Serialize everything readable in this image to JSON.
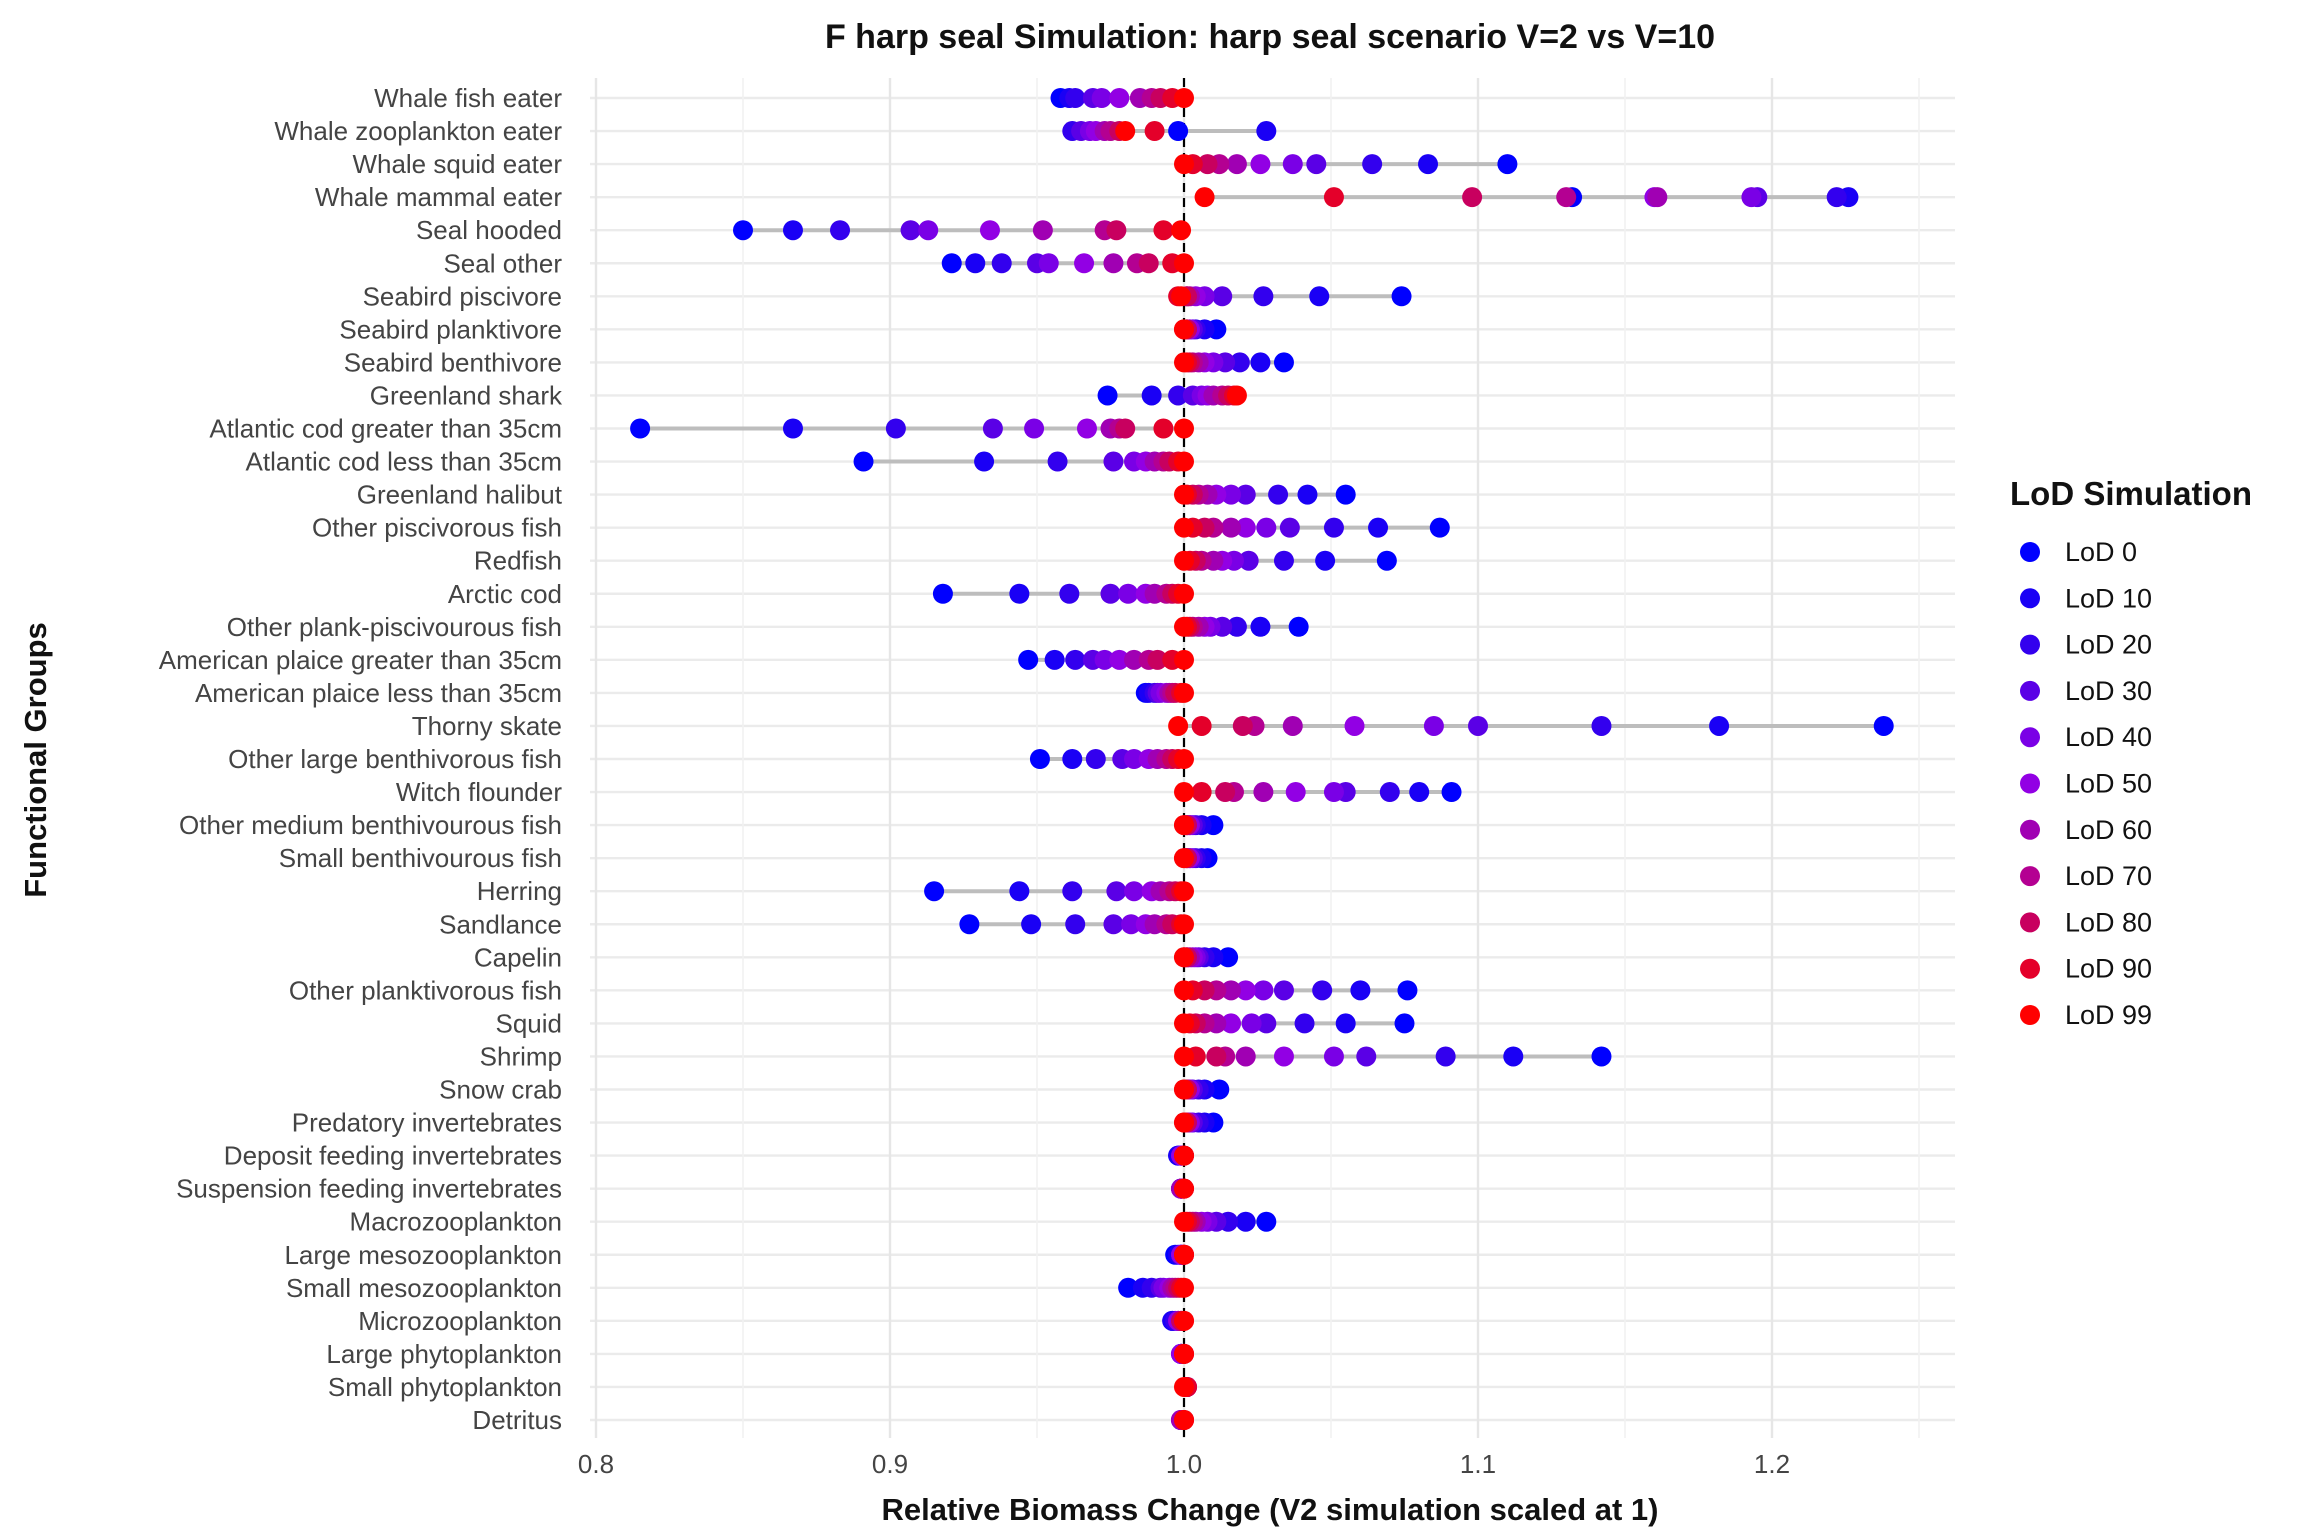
{
  "chart_data": {
    "type": "scatter",
    "title": "F harp seal Simulation: harp seal scenario V=2 vs V=10",
    "xlabel": "Relative Biomass Change (V2 simulation scaled at 1)",
    "ylabel": "Functional Groups",
    "xlim": [
      0.8,
      1.26
    ],
    "x_ticks": [
      "0.8",
      "0.9",
      "1.0",
      "1.1",
      "1.2"
    ],
    "x_tick_values": [
      0.8,
      0.9,
      1.0,
      1.1,
      1.2
    ],
    "reference_line_x": 1.0,
    "grid": true,
    "legend": {
      "title": "LoD Simulation",
      "placement": "right",
      "entries": [
        "LoD 0",
        "LoD 10",
        "LoD 20",
        "LoD 30",
        "LoD 40",
        "LoD 50",
        "LoD 60",
        "LoD 70",
        "LoD 80",
        "LoD 90",
        "LoD 99"
      ],
      "colors": [
        "#0000ff",
        "#1a00f5",
        "#3300ee",
        "#5a00e6",
        "#7a00e6",
        "#9200e4",
        "#a000b3",
        "#b40092",
        "#c8005f",
        "#e4002a",
        "#ff0000"
      ]
    },
    "categories": [
      "Whale fish eater",
      "Whale zooplankton eater",
      "Whale squid eater",
      "Whale mammal eater",
      "Seal hooded",
      "Seal other",
      "Seabird piscivore",
      "Seabird planktivore",
      "Seabird benthivore",
      "Greenland shark",
      "Atlantic cod greater than 35cm",
      "Atlantic cod less than 35cm",
      "Greenland halibut",
      "Other piscivorous fish",
      "Redfish",
      "Arctic cod",
      "Other plank-piscivourous fish",
      "American plaice greater than 35cm",
      "American plaice less than 35cm",
      "Thorny skate",
      "Other large benthivorous fish",
      "Witch flounder",
      "Other medium benthivourous fish",
      "Small benthivourous fish",
      "Herring",
      "Sandlance",
      "Capelin",
      "Other planktivorous fish",
      "Squid",
      "Shrimp",
      "Snow crab",
      "Predatory invertebrates",
      "Deposit feeding invertebrates",
      "Suspension feeding invertebrates",
      "Macrozooplankton",
      "Large mesozooplankton",
      "Small mesozooplankton",
      "Microzooplankton",
      "Large phytoplankton",
      "Small phytoplankton",
      "Detritus"
    ],
    "values_by_lod": [
      [
        0.958,
        0.998,
        1.11,
        1.132,
        0.85,
        0.921,
        1.074,
        1.011,
        1.034,
        0.974,
        0.815,
        0.891,
        1.055,
        1.087,
        1.069,
        0.918,
        1.039,
        0.947,
        0.987,
        1.238,
        0.951,
        1.091,
        1.01,
        1.008,
        0.915,
        0.927,
        1.015,
        1.076,
        1.075,
        1.142,
        1.012,
        1.01,
        0.998,
        0.999,
        1.028,
        0.997,
        0.981,
        0.996,
        0.999,
        1.001,
        0.999
      ],
      [
        0.961,
        1.028,
        1.083,
        1.226,
        0.867,
        0.929,
        1.046,
        1.007,
        1.026,
        0.989,
        0.867,
        0.932,
        1.042,
        1.066,
        1.048,
        0.944,
        1.026,
        0.956,
        0.988,
        1.182,
        0.962,
        1.08,
        1.006,
        1.006,
        0.944,
        0.948,
        1.01,
        1.06,
        1.055,
        1.112,
        1.007,
        1.007,
        0.998,
        0.999,
        1.021,
        0.998,
        0.986,
        0.996,
        0.999,
        1.001,
        0.999
      ],
      [
        0.963,
        0.962,
        1.064,
        1.222,
        0.883,
        0.938,
        1.027,
        1.004,
        1.019,
        0.998,
        0.902,
        0.957,
        1.032,
        1.051,
        1.034,
        0.961,
        1.018,
        0.963,
        0.99,
        1.142,
        0.97,
        1.07,
        1.004,
        1.004,
        0.962,
        0.963,
        1.007,
        1.047,
        1.041,
        1.089,
        1.005,
        1.005,
        0.999,
        0.999,
        1.015,
        0.999,
        0.989,
        0.997,
        0.999,
        1.001,
        0.999
      ],
      [
        0.969,
        0.965,
        1.045,
        1.195,
        0.907,
        0.95,
        1.013,
        1.003,
        1.014,
        1.003,
        0.935,
        0.976,
        1.021,
        1.036,
        1.022,
        0.975,
        1.013,
        0.969,
        0.991,
        1.1,
        0.979,
        1.055,
        1.003,
        1.003,
        0.977,
        0.976,
        1.005,
        1.034,
        1.028,
        1.062,
        1.003,
        1.003,
        0.999,
        0.999,
        1.011,
        0.999,
        0.992,
        0.998,
        0.999,
        1.001,
        0.999
      ],
      [
        0.972,
        0.968,
        1.037,
        1.193,
        0.913,
        0.954,
        1.007,
        1.002,
        1.01,
        1.006,
        0.949,
        0.983,
        1.016,
        1.028,
        1.017,
        0.981,
        1.009,
        0.973,
        0.992,
        1.085,
        0.983,
        1.051,
        1.002,
        1.002,
        0.983,
        0.982,
        1.004,
        1.027,
        1.023,
        1.051,
        1.002,
        1.002,
        0.999,
        0.999,
        1.008,
        0.999,
        0.993,
        0.998,
        0.999,
        1.001,
        0.999
      ],
      [
        0.978,
        0.97,
        1.026,
        1.16,
        0.934,
        0.966,
        1.004,
        1.002,
        1.007,
        1.008,
        0.967,
        0.987,
        1.011,
        1.021,
        1.013,
        0.987,
        1.007,
        0.978,
        0.994,
        1.058,
        0.988,
        1.038,
        1.002,
        1.002,
        0.989,
        0.987,
        1.003,
        1.021,
        1.016,
        1.034,
        1.002,
        1.002,
        0.999,
        0.999,
        1.006,
        0.999,
        0.995,
        0.998,
        0.999,
        1.001,
        0.999
      ],
      [
        0.985,
        0.973,
        1.018,
        1.161,
        0.952,
        0.976,
        1.002,
        1.001,
        1.005,
        1.01,
        0.975,
        0.99,
        1.008,
        1.016,
        1.01,
        0.99,
        1.005,
        0.983,
        0.995,
        1.037,
        0.991,
        1.027,
        1.001,
        1.001,
        0.992,
        0.99,
        1.002,
        1.016,
        1.011,
        1.021,
        1.001,
        1.001,
        1.0,
        0.999,
        1.004,
        1.0,
        0.996,
        0.999,
        1.0,
        1.001,
        0.999
      ],
      [
        0.989,
        0.975,
        1.012,
        1.13,
        0.973,
        0.984,
        1.001,
        1.001,
        1.003,
        1.013,
        0.978,
        0.993,
        1.005,
        1.01,
        1.006,
        0.994,
        1.003,
        0.988,
        0.996,
        1.024,
        0.994,
        1.017,
        1.001,
        1.001,
        0.995,
        0.994,
        1.001,
        1.011,
        1.007,
        1.014,
        1.001,
        1.001,
        1.0,
        1.0,
        1.003,
        1.0,
        0.997,
        0.999,
        1.0,
        1.001,
        1.0
      ],
      [
        0.992,
        0.978,
        1.008,
        1.098,
        0.977,
        0.988,
        1.001,
        1.001,
        1.002,
        1.015,
        0.98,
        0.995,
        1.003,
        1.007,
        1.004,
        0.996,
        1.002,
        0.991,
        0.997,
        1.02,
        0.996,
        1.014,
        1.001,
        1.001,
        0.997,
        0.996,
        1.001,
        1.007,
        1.004,
        1.011,
        1.001,
        1.001,
        1.0,
        1.0,
        1.002,
        1.0,
        0.998,
        0.999,
        1.0,
        1.001,
        1.0
      ],
      [
        0.996,
        0.99,
        1.003,
        1.051,
        0.993,
        0.996,
        0.998,
        1.0,
        1.001,
        1.017,
        0.993,
        0.998,
        1.001,
        1.003,
        1.002,
        0.998,
        1.001,
        0.996,
        0.999,
        1.006,
        0.998,
        1.006,
        1.0,
        1.0,
        0.999,
        0.999,
        1.0,
        1.003,
        1.002,
        1.004,
        1.0,
        1.0,
        1.0,
        1.0,
        1.001,
        1.0,
        0.999,
        1.0,
        1.0,
        1.001,
        1.0
      ],
      [
        1.0,
        0.98,
        1.0,
        1.007,
        0.999,
        1.0,
        0.999,
        1.0,
        1.0,
        1.018,
        1.0,
        1.0,
        1.0,
        1.0,
        1.0,
        1.0,
        1.0,
        1.0,
        1.0,
        0.998,
        1.0,
        1.0,
        1.0,
        1.0,
        1.0,
        1.0,
        1.0,
        1.0,
        1.0,
        1.0,
        1.0,
        1.0,
        1.0,
        1.0,
        1.0,
        1.0,
        1.0,
        1.0,
        1.0,
        1.0,
        1.0
      ]
    ]
  }
}
